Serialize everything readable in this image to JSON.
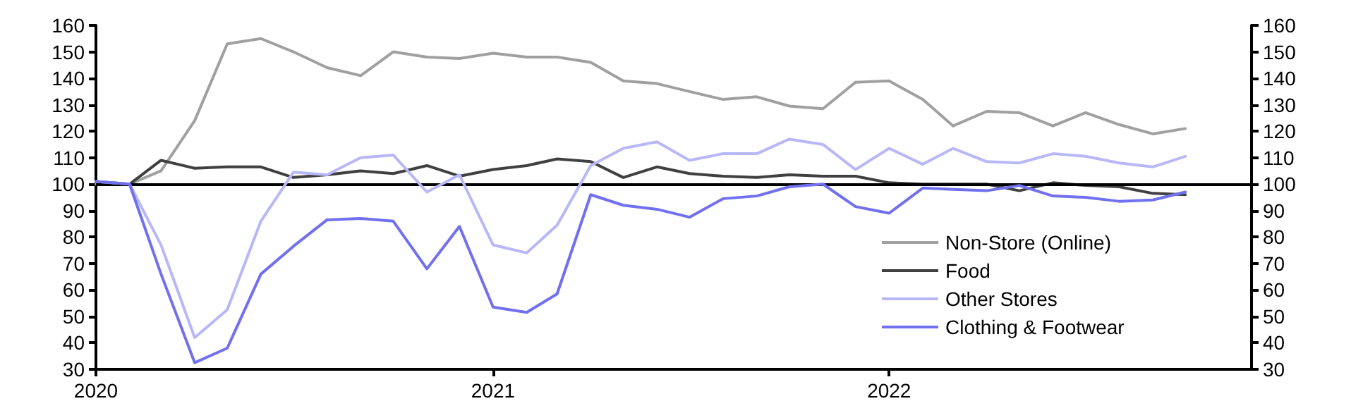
{
  "chart_data": {
    "type": "line",
    "x": [
      "2020-01",
      "2020-02",
      "2020-03",
      "2020-04",
      "2020-05",
      "2020-06",
      "2020-07",
      "2020-08",
      "2020-09",
      "2020-10",
      "2020-11",
      "2020-12",
      "2021-01",
      "2021-02",
      "2021-03",
      "2021-04",
      "2021-05",
      "2021-06",
      "2021-07",
      "2021-08",
      "2021-09",
      "2021-10",
      "2021-11",
      "2021-12",
      "2022-01",
      "2022-02",
      "2022-03",
      "2022-04",
      "2022-05",
      "2022-06",
      "2022-07",
      "2022-08",
      "2022-09",
      "2022-10"
    ],
    "series": [
      {
        "name": "Non-Store (Online)",
        "color": "#a0a0a0",
        "values": [
          100,
          100,
          105,
          124,
          153,
          155,
          150,
          144,
          141,
          150,
          148,
          147.5,
          149.5,
          148,
          148,
          146,
          139,
          138,
          135,
          132,
          133,
          129.5,
          128.5,
          138.5,
          139,
          132,
          122,
          127.5,
          127,
          122,
          127,
          122.5,
          119,
          121
        ]
      },
      {
        "name": "Food",
        "color": "#404040",
        "values": [
          101,
          100,
          109,
          106,
          106.5,
          106.5,
          102.5,
          103.5,
          105,
          104,
          107,
          103,
          105.5,
          107,
          109.5,
          108.5,
          102.5,
          106.5,
          104,
          103,
          102.5,
          103.5,
          103,
          103,
          100.5,
          100,
          100,
          100,
          97.5,
          100.5,
          99.5,
          99,
          96.5,
          96
        ]
      },
      {
        "name": "Other Stores",
        "color": "#b8b8f8",
        "values": [
          101,
          100,
          77,
          42,
          52.5,
          86,
          104.5,
          103.5,
          110,
          111,
          97,
          103.5,
          77,
          74,
          84.5,
          107,
          113.5,
          116,
          109,
          111.5,
          111.5,
          117,
          115,
          105.5,
          113.5,
          107.5,
          113.5,
          108.5,
          108,
          111.5,
          110.5,
          108,
          106.5,
          110.5
        ]
      },
      {
        "name": "Clothing & Footwear",
        "color": "#7070f0",
        "values": [
          101,
          100,
          66,
          32.5,
          38,
          66,
          76.5,
          86.5,
          87,
          86,
          68,
          84,
          53.5,
          51.5,
          58.5,
          96,
          92,
          90.5,
          87.5,
          94.5,
          95.5,
          99,
          100,
          91.5,
          89,
          98.5,
          98,
          97.5,
          99.5,
          95.5,
          95,
          93.5,
          94,
          97
        ]
      }
    ],
    "xlim": [
      "2020-01",
      "2022-12"
    ],
    "xticks": [
      "2020",
      "2021",
      "2022"
    ],
    "ylim": [
      30,
      160
    ],
    "yticks": [
      30,
      40,
      50,
      60,
      70,
      80,
      90,
      100,
      110,
      120,
      130,
      140,
      150,
      160
    ],
    "y2lim": [
      30,
      160
    ],
    "y2ticks": [
      30,
      40,
      50,
      60,
      70,
      80,
      90,
      100,
      110,
      120,
      130,
      140,
      150,
      160
    ],
    "ref_lines": [
      {
        "axis": "y",
        "value": 100,
        "color": "#000000"
      }
    ],
    "grid": false,
    "legend": "bottom right",
    "marker": "none",
    "line_style": "solid"
  }
}
